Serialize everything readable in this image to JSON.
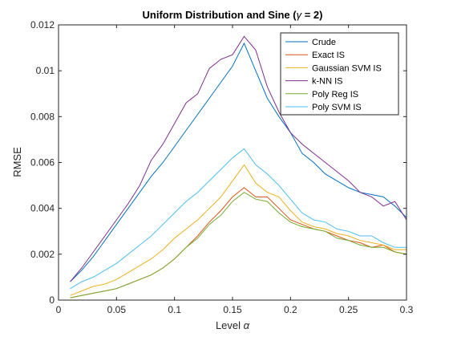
{
  "chart_data": {
    "type": "line",
    "title_pre": "Uniform Distribution and Sine (",
    "title_greek": "γ",
    "title_post": " = 2)",
    "xlabel_pre": "Level ",
    "xlabel_greek": "α",
    "ylabel": "RMSE",
    "xlim": [
      0,
      0.3
    ],
    "ylim": [
      0,
      0.012
    ],
    "xticks": [
      0,
      0.05,
      0.1,
      0.15,
      0.2,
      0.25,
      0.3
    ],
    "xtick_labels": [
      "0",
      "0.05",
      "0.1",
      "0.15",
      "0.2",
      "0.25",
      "0.3"
    ],
    "yticks": [
      0,
      0.002,
      0.004,
      0.006,
      0.008,
      0.01,
      0.012
    ],
    "ytick_labels": [
      "0",
      "0.002",
      "0.004",
      "0.006",
      "0.008",
      "0.01",
      "0.012"
    ],
    "grid": false,
    "legend_position": "top-right",
    "x": [
      0.01,
      0.02,
      0.03,
      0.04,
      0.05,
      0.06,
      0.07,
      0.08,
      0.09,
      0.1,
      0.11,
      0.12,
      0.13,
      0.14,
      0.15,
      0.16,
      0.17,
      0.18,
      0.19,
      0.2,
      0.21,
      0.22,
      0.23,
      0.24,
      0.25,
      0.26,
      0.27,
      0.28,
      0.29,
      0.3
    ],
    "series": [
      {
        "name": "Crude",
        "color": "#0072BD",
        "values": [
          0.0008,
          0.0013,
          0.0019,
          0.0026,
          0.0033,
          0.004,
          0.0047,
          0.0054,
          0.006,
          0.0067,
          0.0074,
          0.0081,
          0.0088,
          0.0095,
          0.0102,
          0.0112,
          0.01,
          0.0088,
          0.008,
          0.0073,
          0.0064,
          0.006,
          0.0055,
          0.0052,
          0.0049,
          0.0047,
          0.0046,
          0.0045,
          0.0041,
          0.0036
        ]
      },
      {
        "name": "Exact IS",
        "color": "#D95319",
        "values": [
          0.0001,
          0.0002,
          0.0003,
          0.0004,
          0.0005,
          0.0007,
          0.0009,
          0.0011,
          0.0014,
          0.0018,
          0.0023,
          0.0028,
          0.0034,
          0.0039,
          0.0045,
          0.0049,
          0.0045,
          0.0045,
          0.004,
          0.0035,
          0.0033,
          0.0031,
          0.003,
          0.0028,
          0.0026,
          0.0025,
          0.0023,
          0.0024,
          0.0021,
          0.002
        ]
      },
      {
        "name": "Gaussian SVM IS",
        "color": "#EDB120",
        "values": [
          0.0002,
          0.0004,
          0.0006,
          0.0007,
          0.0009,
          0.0012,
          0.0015,
          0.0018,
          0.0022,
          0.0027,
          0.0031,
          0.0035,
          0.004,
          0.0045,
          0.0052,
          0.0059,
          0.0051,
          0.0047,
          0.0045,
          0.0039,
          0.0034,
          0.0032,
          0.0031,
          0.0029,
          0.0028,
          0.0026,
          0.0025,
          0.0024,
          0.0022,
          0.0022
        ]
      },
      {
        "name": "k-NN IS",
        "color": "#7E2F8E",
        "values": [
          0.0008,
          0.0014,
          0.0021,
          0.0028,
          0.0035,
          0.0042,
          0.005,
          0.0061,
          0.0068,
          0.0077,
          0.0086,
          0.009,
          0.0101,
          0.0105,
          0.0107,
          0.0115,
          0.0109,
          0.0093,
          0.0082,
          0.0073,
          0.0068,
          0.0064,
          0.006,
          0.0056,
          0.0052,
          0.0047,
          0.0045,
          0.0041,
          0.0043,
          0.0035
        ]
      },
      {
        "name": "Poly Reg IS",
        "color": "#77AC30",
        "values": [
          0.0001,
          0.0002,
          0.0003,
          0.0004,
          0.0005,
          0.0007,
          0.0009,
          0.0011,
          0.0014,
          0.0018,
          0.0023,
          0.0027,
          0.0033,
          0.0037,
          0.0043,
          0.0047,
          0.0044,
          0.0043,
          0.0038,
          0.0034,
          0.0032,
          0.0031,
          0.003,
          0.0027,
          0.0026,
          0.0024,
          0.0023,
          0.0023,
          0.0021,
          0.002
        ]
      },
      {
        "name": "Poly SVM IS",
        "color": "#4DBEEE",
        "values": [
          0.0005,
          0.0008,
          0.001,
          0.0013,
          0.0016,
          0.002,
          0.0024,
          0.0028,
          0.0033,
          0.0038,
          0.0043,
          0.0047,
          0.0052,
          0.0057,
          0.0062,
          0.0066,
          0.0059,
          0.0055,
          0.005,
          0.0044,
          0.0038,
          0.0035,
          0.0034,
          0.0031,
          0.003,
          0.0028,
          0.0028,
          0.0025,
          0.0023,
          0.0023
        ]
      }
    ]
  }
}
